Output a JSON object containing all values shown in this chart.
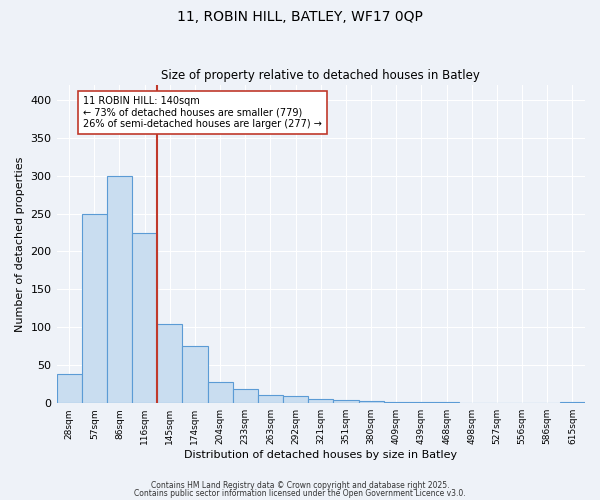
{
  "title": "11, ROBIN HILL, BATLEY, WF17 0QP",
  "subtitle": "Size of property relative to detached houses in Batley",
  "xlabel": "Distribution of detached houses by size in Batley",
  "ylabel": "Number of detached properties",
  "bar_labels": [
    "28sqm",
    "57sqm",
    "86sqm",
    "116sqm",
    "145sqm",
    "174sqm",
    "204sqm",
    "233sqm",
    "263sqm",
    "292sqm",
    "321sqm",
    "351sqm",
    "380sqm",
    "409sqm",
    "439sqm",
    "468sqm",
    "498sqm",
    "527sqm",
    "556sqm",
    "586sqm",
    "615sqm"
  ],
  "bar_values": [
    38,
    249,
    300,
    225,
    105,
    75,
    28,
    19,
    11,
    9,
    5,
    4,
    3,
    1,
    1,
    1,
    0,
    0,
    0,
    0,
    2
  ],
  "bar_color": "#c9ddf0",
  "bar_edge_color": "#5b9bd5",
  "vline_x_idx": 3.5,
  "vline_color": "#c0392b",
  "annotation_title": "11 ROBIN HILL: 140sqm",
  "annotation_line1": "← 73% of detached houses are smaller (779)",
  "annotation_line2": "26% of semi-detached houses are larger (277) →",
  "annotation_box_color": "#ffffff",
  "annotation_box_edge": "#c0392b",
  "ylim": [
    0,
    420
  ],
  "yticks": [
    0,
    50,
    100,
    150,
    200,
    250,
    300,
    350,
    400
  ],
  "bg_color": "#eef2f8",
  "grid_color": "#ffffff",
  "footer1": "Contains HM Land Registry data © Crown copyright and database right 2025.",
  "footer2": "Contains public sector information licensed under the Open Government Licence v3.0."
}
